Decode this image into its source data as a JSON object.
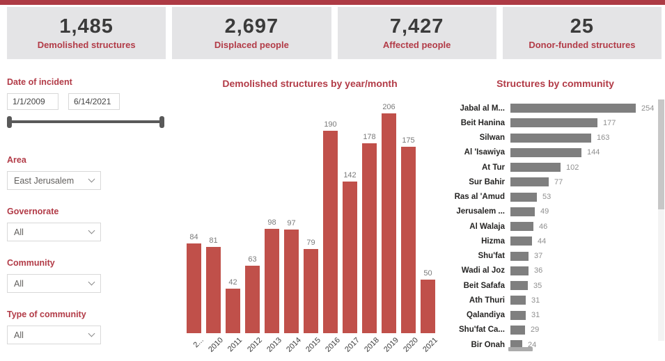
{
  "banner": {
    "color": "#ad3a44"
  },
  "kpi_cards": [
    {
      "value": "1,485",
      "label": "Demolished structures"
    },
    {
      "value": "2,697",
      "label": "Displaced people"
    },
    {
      "value": "7,427",
      "label": "Affected people"
    },
    {
      "value": "25",
      "label": "Donor-funded structures"
    }
  ],
  "filters": {
    "date": {
      "label": "Date of incident",
      "start": "1/1/2009",
      "end": "6/14/2021"
    },
    "area": {
      "label": "Area",
      "value": "East Jerusalem"
    },
    "governorate": {
      "label": "Governorate",
      "value": "All"
    },
    "community": {
      "label": "Community",
      "value": "All"
    },
    "type_of_community": {
      "label": "Type of community",
      "value": "All"
    }
  },
  "chart_data": [
    {
      "type": "bar",
      "orientation": "vertical",
      "title": "Demolished structures by year/month",
      "categories": [
        "2...",
        "2010",
        "2011",
        "2012",
        "2013",
        "2014",
        "2015",
        "2016",
        "2017",
        "2018",
        "2019",
        "2020",
        "2021"
      ],
      "values": [
        84,
        81,
        42,
        63,
        98,
        97,
        79,
        190,
        142,
        178,
        206,
        175,
        50
      ],
      "ylim": [
        0,
        206
      ],
      "data_labels": true,
      "grid": false,
      "bar_color": "#c0504a",
      "label_color": "#7a7a7a"
    },
    {
      "type": "bar",
      "orientation": "horizontal",
      "title": "Structures by community",
      "categories": [
        "Jabal al M...",
        "Beit Hanina",
        "Silwan",
        "Al 'Isawiya",
        "At Tur",
        "Sur Bahir",
        "Ras al 'Amud",
        "Jerusalem ...",
        "Al Walaja",
        "Hizma",
        "Shu'fat",
        "Wadi al Joz",
        "Beit Safafa",
        "Ath Thuri",
        "Qalandiya",
        "Shu'fat Ca...",
        "Bir Onah"
      ],
      "values": [
        254,
        177,
        163,
        144,
        102,
        77,
        53,
        49,
        46,
        44,
        37,
        36,
        35,
        31,
        31,
        29,
        24
      ],
      "xlim": [
        0,
        254
      ],
      "data_labels": true,
      "grid": false,
      "bar_color": "#7f7f7f",
      "label_color": "#8f8f8f"
    }
  ],
  "colors": {
    "accent_red": "#b23b47",
    "banner_red": "#ad3a44",
    "column_bar": "#c0504a",
    "hbar_gray": "#7f7f7f",
    "card_bg": "#e4e4e6",
    "kpi_text": "#3b3b3b"
  }
}
